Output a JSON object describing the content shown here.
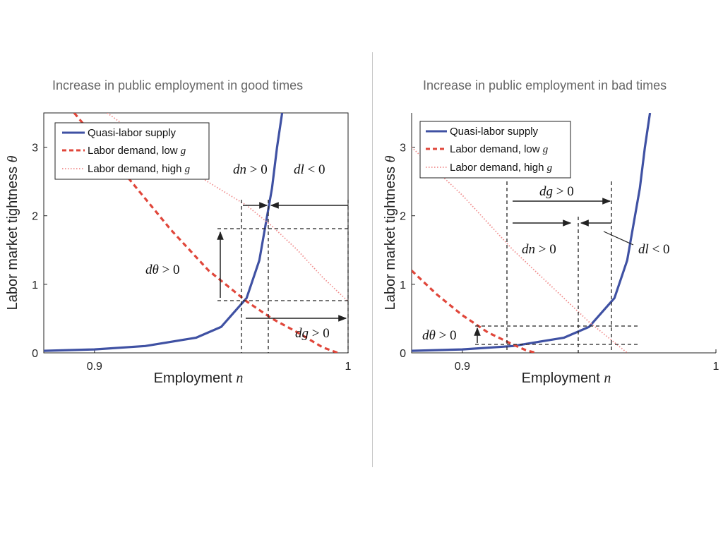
{
  "titles": {
    "left": "Increase in public employment in good times",
    "right": "Increase in public employment in bad times"
  },
  "axes": {
    "ylabel_prefix": "Labor market tightness ",
    "ylabel_var": "θ",
    "xlabel_prefix": "Employment ",
    "xlabel_var": "n"
  },
  "legend": [
    {
      "name": "Quasi-labor supply",
      "style": "solid",
      "color": "#3f51a3"
    },
    {
      "name": "Labor demand, low ",
      "var": "g",
      "style": "dashed",
      "color": "#e0463a"
    },
    {
      "name": "Labor demand, high ",
      "var": "g",
      "style": "dotted",
      "color": "#f08c8c"
    }
  ],
  "annotations": {
    "left": {
      "dn": {
        "var": "dn",
        "rel": " > 0"
      },
      "dl": {
        "var": "dl",
        "rel": " < 0"
      },
      "dtheta": {
        "var": "dθ",
        "rel": " > 0"
      },
      "dg": {
        "var": "dg",
        "rel": " > 0"
      }
    },
    "right": {
      "dg": {
        "var": "dg",
        "rel": " > 0"
      },
      "dn": {
        "var": "dn",
        "rel": " > 0"
      },
      "dl": {
        "var": "dl",
        "rel": " < 0"
      },
      "dtheta": {
        "var": "dθ",
        "rel": " > 0"
      }
    }
  },
  "chart_data": [
    {
      "type": "line",
      "title": "Increase in public employment in good times",
      "xlabel": "Employment n",
      "ylabel": "Labor market tightness θ",
      "xlim": [
        0.88,
        1.0
      ],
      "ylim": [
        0,
        3.5
      ],
      "xticks": [
        {
          "value": 0.9,
          "label": "0.9"
        },
        {
          "value": 1.0,
          "label": "1"
        }
      ],
      "yticks": [
        {
          "value": 0,
          "label": "0"
        },
        {
          "value": 1,
          "label": "1"
        },
        {
          "value": 2,
          "label": "2"
        },
        {
          "value": 3,
          "label": "3"
        }
      ],
      "legend_position": "top-left",
      "series": [
        {
          "name": "Quasi-labor supply",
          "x": [
            0.88,
            0.9,
            0.92,
            0.94,
            0.95,
            0.96,
            0.965,
            0.97,
            0.972,
            0.974
          ],
          "y": [
            0.03,
            0.05,
            0.1,
            0.22,
            0.38,
            0.8,
            1.35,
            2.4,
            3.0,
            3.5
          ]
        },
        {
          "name": "Labor demand, low g",
          "x": [
            0.892,
            0.91,
            0.93,
            0.945,
            0.96,
            0.97,
            0.98,
            0.99,
            0.996
          ],
          "y": [
            3.5,
            2.7,
            1.8,
            1.2,
            0.75,
            0.5,
            0.3,
            0.08,
            0.0
          ]
        },
        {
          "name": "Labor demand, high g",
          "x": [
            0.905,
            0.92,
            0.94,
            0.96,
            0.97,
            0.98,
            0.99,
            1.0
          ],
          "y": [
            3.5,
            3.1,
            2.6,
            2.15,
            1.85,
            1.5,
            1.1,
            0.75
          ]
        }
      ]
    },
    {
      "type": "line",
      "title": "Increase in public employment in bad times",
      "xlabel": "Employment n",
      "ylabel": "Labor market tightness θ",
      "xlim": [
        0.88,
        1.0
      ],
      "ylim": [
        0,
        3.5
      ],
      "xticks": [
        {
          "value": 0.9,
          "label": "0.9"
        },
        {
          "value": 1.0,
          "label": "1"
        }
      ],
      "yticks": [
        {
          "value": 0,
          "label": "0"
        },
        {
          "value": 1,
          "label": "1"
        },
        {
          "value": 2,
          "label": "2"
        },
        {
          "value": 3,
          "label": "3"
        }
      ],
      "legend_position": "top-left",
      "series": [
        {
          "name": "Quasi-labor supply",
          "x": [
            0.88,
            0.9,
            0.92,
            0.94,
            0.95,
            0.96,
            0.965,
            0.97,
            0.972,
            0.974
          ],
          "y": [
            0.03,
            0.05,
            0.1,
            0.22,
            0.38,
            0.8,
            1.35,
            2.4,
            3.0,
            3.5
          ]
        },
        {
          "name": "Labor demand, low g",
          "x": [
            0.88,
            0.89,
            0.9,
            0.91,
            0.92,
            0.925,
            0.929
          ],
          "y": [
            1.2,
            0.85,
            0.55,
            0.3,
            0.12,
            0.04,
            0.0
          ]
        },
        {
          "name": "Labor demand, high g",
          "x": [
            0.88,
            0.9,
            0.92,
            0.94,
            0.95,
            0.96,
            0.965
          ],
          "y": [
            3.0,
            2.3,
            1.5,
            0.8,
            0.45,
            0.15,
            0.0
          ]
        }
      ]
    }
  ]
}
